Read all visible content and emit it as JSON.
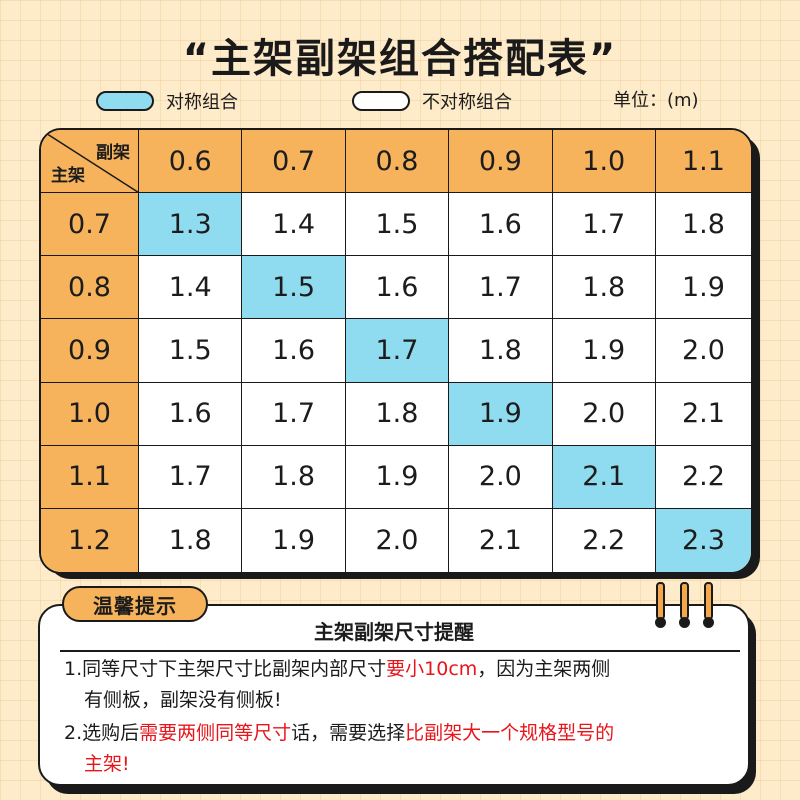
{
  "title": "“主架副架组合搭配表”",
  "legend": {
    "symmetric_label": "对称组合",
    "asymmetric_label": "不对称组合",
    "unit": "单位：(m)",
    "colors": {
      "symmetric": "#8fdcf0",
      "asymmetric": "#ffffff",
      "header": "#f6b35c"
    }
  },
  "table": {
    "corner_col_label": "副架",
    "corner_row_label": "主架",
    "col_headers": [
      "0.6",
      "0.7",
      "0.8",
      "0.9",
      "1.0",
      "1.1"
    ],
    "rows": [
      {
        "header": "0.7",
        "values": [
          "1.3",
          "1.4",
          "1.5",
          "1.6",
          "1.7",
          "1.8"
        ]
      },
      {
        "header": "0.8",
        "values": [
          "1.4",
          "1.5",
          "1.6",
          "1.7",
          "1.8",
          "1.9"
        ]
      },
      {
        "header": "0.9",
        "values": [
          "1.5",
          "1.6",
          "1.7",
          "1.8",
          "1.9",
          "2.0"
        ]
      },
      {
        "header": "1.0",
        "values": [
          "1.6",
          "1.7",
          "1.8",
          "1.9",
          "2.0",
          "2.1"
        ]
      },
      {
        "header": "1.1",
        "values": [
          "1.7",
          "1.8",
          "1.9",
          "2.0",
          "2.1",
          "2.2"
        ]
      },
      {
        "header": "1.2",
        "values": [
          "1.8",
          "1.9",
          "2.0",
          "2.1",
          "2.2",
          "2.3"
        ]
      }
    ]
  },
  "tips": {
    "tag": "温馨提示",
    "heading": "主架副架尺寸提醒",
    "item1": {
      "part1": "1.同等尺寸下主架尺寸比副架内部尺寸",
      "highlight": "要小10cm",
      "part2": "，因为主架两侧",
      "part3": "有侧板，副架没有侧板!"
    },
    "item2": {
      "part1": "2.选购后",
      "highlight1": "需要两侧同等尺寸",
      "part2": "话，需要选择",
      "highlight2": "比副架大一个规格型号的",
      "highlight3": "主架!"
    }
  }
}
